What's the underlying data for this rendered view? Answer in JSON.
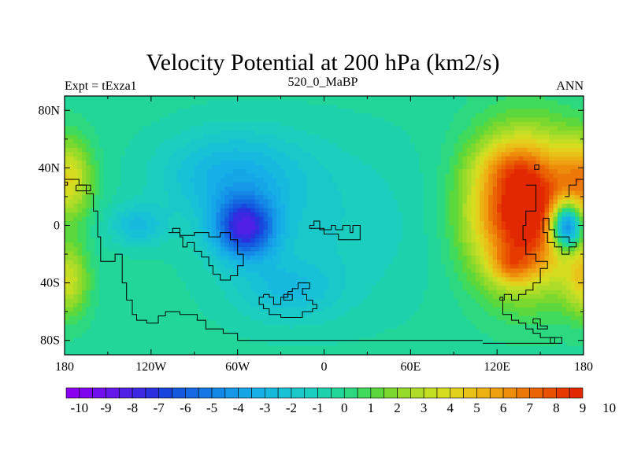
{
  "chart_data": {
    "type": "heatmap",
    "title": "Velocity Potential at 200 hPa (km2/s)",
    "left_subtitle": "Expt = tExza1",
    "center_subtitle": "520_0_MaBP",
    "right_subtitle": "ANN",
    "x_range": [
      -180,
      180
    ],
    "y_range": [
      -90,
      90
    ],
    "x_ticks": [
      {
        "value": -180,
        "label": "180"
      },
      {
        "value": -120,
        "label": "120W"
      },
      {
        "value": -60,
        "label": "60W"
      },
      {
        "value": 0,
        "label": "0"
      },
      {
        "value": 60,
        "label": "60E"
      },
      {
        "value": 120,
        "label": "120E"
      },
      {
        "value": 180,
        "label": "180"
      }
    ],
    "y_ticks": [
      {
        "value": 80,
        "label": "80N"
      },
      {
        "value": 40,
        "label": "40N"
      },
      {
        "value": 0,
        "label": "0"
      },
      {
        "value": -40,
        "label": "40S"
      },
      {
        "value": -80,
        "label": "80S"
      }
    ],
    "contour_levels": [
      -10,
      -9.5,
      -9,
      -8.5,
      -8,
      -7.5,
      -7,
      -6.5,
      -6,
      -5.5,
      -5,
      -4.5,
      -4,
      -3.5,
      -3,
      -2.5,
      -2,
      -1.5,
      -1,
      -0.5,
      0,
      0.5,
      1,
      1.5,
      2,
      2.5,
      3,
      3.5,
      4,
      4.5,
      5,
      5.5,
      6,
      6.5,
      7,
      7.5,
      8,
      8.5,
      9,
      9.5,
      10
    ],
    "colorbar_labels": [
      "-10",
      "-9",
      "-8",
      "-7",
      "-6",
      "-5",
      "-4",
      "-3",
      "-2",
      "-1",
      "0",
      "1",
      "2",
      "3",
      "4",
      "5",
      "6",
      "7",
      "8",
      "9",
      "10"
    ],
    "colors": [
      "#8a00f0",
      "#7e05ee",
      "#7010ec",
      "#6418ea",
      "#5020e6",
      "#3c28e2",
      "#2a30de",
      "#1a44de",
      "#1558e0",
      "#1468e2",
      "#1478e4",
      "#1488e6",
      "#1598e8",
      "#15a6e8",
      "#16b0e6",
      "#17bade",
      "#18c2d6",
      "#1ac8ca",
      "#1ccebe",
      "#1ed2ae",
      "#22d69a",
      "#2cd880",
      "#40da5c",
      "#5cd83c",
      "#7ad82e",
      "#96da2a",
      "#aedc28",
      "#c4de24",
      "#d6dc20",
      "#e2d01c",
      "#e8c218",
      "#ecb214",
      "#eea010",
      "#ee8c0c",
      "#ec7808",
      "#ea6404",
      "#e85002",
      "#e63a00",
      "#e22800"
    ],
    "field_centers": [
      {
        "lon": 140,
        "lat": 10,
        "value": 10.6,
        "sx": 27,
        "sy": 35
      },
      {
        "lon": 130,
        "lat": -28,
        "value": 2.5,
        "sx": 10,
        "sy": 9
      },
      {
        "lon": 128,
        "lat": 42,
        "value": 1.5,
        "sx": 16,
        "sy": 12
      },
      {
        "lon": -178,
        "lat": 32,
        "value": 4.4,
        "sx": 12,
        "sy": 20
      },
      {
        "lon": 182,
        "lat": 32,
        "value": 4.4,
        "sx": 12,
        "sy": 20
      },
      {
        "lon": -178,
        "lat": -38,
        "value": 3.8,
        "sx": 10,
        "sy": 18
      },
      {
        "lon": 182,
        "lat": -38,
        "value": 3.8,
        "sx": 10,
        "sy": 18
      },
      {
        "lon": -55,
        "lat": -2,
        "value": -6.8,
        "sx": 15,
        "sy": 15
      },
      {
        "lon": -65,
        "lat": 35,
        "value": -2.6,
        "sx": 35,
        "sy": 22
      },
      {
        "lon": -130,
        "lat": 0,
        "value": -2.2,
        "sx": 14,
        "sy": 10
      },
      {
        "lon": -25,
        "lat": -45,
        "value": -1.8,
        "sx": 25,
        "sy": 15
      },
      {
        "lon": 0,
        "lat": 0,
        "value": -1.2,
        "sx": 60,
        "sy": 45
      },
      {
        "lon": 168,
        "lat": 0,
        "value": -10.5,
        "sx": 8,
        "sy": 12
      }
    ],
    "background_value": 0.25,
    "coastlines": [
      [
        [
          -180,
          32
        ],
        [
          -170,
          32
        ],
        [
          -170,
          28
        ],
        [
          -165,
          28
        ],
        [
          -165,
          22
        ],
        [
          -160,
          22
        ],
        [
          -160,
          10
        ],
        [
          -157,
          10
        ],
        [
          -157,
          -8
        ],
        [
          -155,
          -8
        ],
        [
          -155,
          -25
        ],
        [
          -145,
          -25
        ],
        [
          -145,
          -20
        ],
        [
          -140,
          -20
        ],
        [
          -140,
          -40
        ],
        [
          -137,
          -40
        ],
        [
          -137,
          -52
        ],
        [
          -133,
          -52
        ],
        [
          -133,
          -62
        ],
        [
          -130,
          -62
        ],
        [
          -130,
          -66
        ],
        [
          -123,
          -66
        ],
        [
          -123,
          -68
        ],
        [
          -115,
          -68
        ],
        [
          -115,
          -63
        ],
        [
          -110,
          -63
        ],
        [
          -110,
          -60
        ],
        [
          -100,
          -60
        ],
        [
          -100,
          -62
        ],
        [
          -88,
          -62
        ],
        [
          -88,
          -66
        ],
        [
          -82,
          -66
        ],
        [
          -82,
          -72
        ],
        [
          -70,
          -72
        ],
        [
          -70,
          -75
        ],
        [
          -60,
          -75
        ],
        [
          -60,
          -80
        ],
        [
          110,
          -80
        ]
      ],
      [
        [
          -172,
          28
        ],
        [
          -162,
          28
        ],
        [
          -162,
          24
        ],
        [
          -172,
          24
        ],
        [
          -172,
          28
        ]
      ],
      [
        [
          -180,
          30
        ],
        [
          -178,
          30
        ],
        [
          -178,
          28
        ],
        [
          -180,
          28
        ]
      ],
      [
        [
          -108,
          -5
        ],
        [
          -105,
          -5
        ],
        [
          -105,
          -2
        ],
        [
          -100,
          -2
        ],
        [
          -100,
          -8
        ],
        [
          -98,
          -8
        ],
        [
          -98,
          -15
        ],
        [
          -95,
          -15
        ],
        [
          -95,
          -12
        ],
        [
          -90,
          -12
        ],
        [
          -90,
          -18
        ],
        [
          -85,
          -18
        ],
        [
          -85,
          -22
        ],
        [
          -80,
          -22
        ],
        [
          -80,
          -28
        ],
        [
          -77,
          -28
        ],
        [
          -77,
          -34
        ],
        [
          -72,
          -34
        ],
        [
          -72,
          -38
        ],
        [
          -65,
          -38
        ],
        [
          -65,
          -35
        ],
        [
          -60,
          -35
        ],
        [
          -60,
          -28
        ],
        [
          -56,
          -28
        ],
        [
          -56,
          -20
        ],
        [
          -60,
          -20
        ],
        [
          -60,
          -10
        ],
        [
          -65,
          -10
        ],
        [
          -65,
          -5
        ],
        [
          -72,
          -5
        ],
        [
          -72,
          -8
        ],
        [
          -80,
          -8
        ],
        [
          -80,
          -5
        ],
        [
          -90,
          -5
        ],
        [
          -90,
          -7
        ],
        [
          -100,
          -7
        ],
        [
          -100,
          -5
        ],
        [
          -108,
          -5
        ]
      ],
      [
        [
          -10,
          0
        ],
        [
          -7,
          0
        ],
        [
          -7,
          3
        ],
        [
          -3,
          3
        ],
        [
          -3,
          -3
        ],
        [
          5,
          -3
        ],
        [
          5,
          0
        ],
        [
          8,
          0
        ],
        [
          8,
          -3
        ],
        [
          13,
          -3
        ],
        [
          13,
          0
        ],
        [
          18,
          0
        ],
        [
          18,
          -5
        ],
        [
          20,
          -5
        ],
        [
          20,
          0
        ],
        [
          25,
          0
        ],
        [
          25,
          -10
        ],
        [
          10,
          -10
        ],
        [
          10,
          -6
        ],
        [
          0,
          -6
        ],
        [
          0,
          -2
        ],
        [
          -10,
          -2
        ],
        [
          -10,
          0
        ]
      ],
      [
        [
          -42,
          -48
        ],
        [
          -38,
          -48
        ],
        [
          -38,
          -50
        ],
        [
          -35,
          -50
        ],
        [
          -35,
          -55
        ],
        [
          -30,
          -55
        ],
        [
          -30,
          -50
        ],
        [
          -25,
          -50
        ],
        [
          -25,
          -46
        ],
        [
          -22,
          -46
        ],
        [
          -22,
          -44
        ],
        [
          -18,
          -44
        ],
        [
          -18,
          -40
        ],
        [
          -10,
          -40
        ],
        [
          -10,
          -44
        ],
        [
          -15,
          -44
        ],
        [
          -15,
          -48
        ],
        [
          -12,
          -48
        ],
        [
          -12,
          -52
        ],
        [
          -8,
          -52
        ],
        [
          -8,
          -55
        ],
        [
          -5,
          -55
        ],
        [
          -5,
          -58
        ],
        [
          -8,
          -58
        ],
        [
          -8,
          -60
        ],
        [
          -15,
          -60
        ],
        [
          -15,
          -64
        ],
        [
          -30,
          -64
        ],
        [
          -30,
          -62
        ],
        [
          -38,
          -62
        ],
        [
          -38,
          -58
        ],
        [
          -42,
          -58
        ],
        [
          -42,
          -55
        ],
        [
          -45,
          -55
        ],
        [
          -45,
          -50
        ],
        [
          -42,
          -50
        ],
        [
          -42,
          -48
        ]
      ],
      [
        [
          -28,
          -48
        ],
        [
          -22,
          -48
        ],
        [
          -22,
          -52
        ],
        [
          -28,
          -52
        ],
        [
          -28,
          -48
        ]
      ],
      [
        [
          122,
          -50
        ],
        [
          124,
          -50
        ],
        [
          124,
          -62
        ],
        [
          130,
          -62
        ],
        [
          130,
          -66
        ],
        [
          135,
          -66
        ],
        [
          135,
          -68
        ],
        [
          140,
          -68
        ],
        [
          140,
          -72
        ],
        [
          145,
          -72
        ],
        [
          145,
          -75
        ],
        [
          150,
          -75
        ],
        [
          150,
          -78
        ],
        [
          160,
          -78
        ],
        [
          160,
          -82
        ],
        [
          110,
          -82
        ]
      ],
      [
        [
          140,
          28
        ],
        [
          147,
          28
        ],
        [
          147,
          10
        ],
        [
          140,
          10
        ],
        [
          140,
          0
        ],
        [
          138,
          0
        ],
        [
          138,
          -10
        ],
        [
          140,
          -10
        ],
        [
          140,
          -20
        ],
        [
          147,
          -20
        ],
        [
          147,
          -25
        ],
        [
          155,
          -25
        ],
        [
          155,
          -30
        ],
        [
          150,
          -30
        ],
        [
          150,
          -40
        ],
        [
          145,
          -40
        ],
        [
          145,
          -45
        ],
        [
          140,
          -45
        ],
        [
          140,
          -48
        ],
        [
          135,
          -48
        ],
        [
          135,
          -52
        ],
        [
          130,
          -52
        ],
        [
          130,
          -48
        ],
        [
          125,
          -48
        ],
        [
          125,
          -52
        ],
        [
          122,
          -52
        ],
        [
          122,
          -50
        ]
      ],
      [
        [
          152,
          5
        ],
        [
          156,
          5
        ],
        [
          156,
          -3
        ],
        [
          160,
          -3
        ],
        [
          160,
          -8
        ],
        [
          170,
          -8
        ],
        [
          170,
          -12
        ],
        [
          175,
          -12
        ],
        [
          175,
          -15
        ],
        [
          170,
          -15
        ],
        [
          170,
          -20
        ],
        [
          165,
          -20
        ],
        [
          165,
          -15
        ],
        [
          160,
          -15
        ],
        [
          160,
          -12
        ],
        [
          155,
          -12
        ],
        [
          155,
          -5
        ],
        [
          152,
          -5
        ],
        [
          152,
          5
        ]
      ],
      [
        [
          167,
          20
        ],
        [
          170,
          20
        ],
        [
          170,
          28
        ],
        [
          175,
          28
        ],
        [
          175,
          32
        ],
        [
          180,
          32
        ]
      ],
      [
        [
          146,
          42
        ],
        [
          149,
          42
        ],
        [
          149,
          39
        ],
        [
          146,
          39
        ],
        [
          146,
          42
        ]
      ],
      [
        [
          145,
          -65
        ],
        [
          150,
          -65
        ],
        [
          150,
          -70
        ],
        [
          155,
          -70
        ],
        [
          155,
          -72
        ],
        [
          148,
          -72
        ],
        [
          148,
          -68
        ],
        [
          145,
          -68
        ],
        [
          145,
          -65
        ]
      ],
      [
        [
          157,
          -78
        ],
        [
          165,
          -78
        ],
        [
          165,
          -82
        ],
        [
          157,
          -82
        ],
        [
          157,
          -78
        ]
      ]
    ]
  }
}
